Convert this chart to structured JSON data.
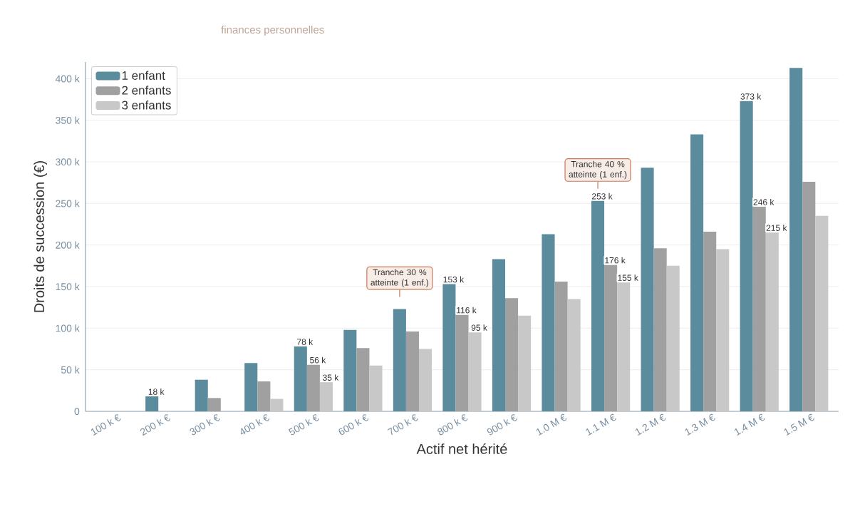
{
  "chart_data": {
    "type": "bar",
    "subtitle": "finances personnelles",
    "xlabel": "Actif net hérité",
    "ylabel": "Droits de succession (€)",
    "categories": [
      "100 k €",
      "200 k €",
      "300 k €",
      "400 k €",
      "500 k €",
      "600 k €",
      "700 k €",
      "800 k €",
      "900 k €",
      "1.0 M €",
      "1.1 M €",
      "1.2 M €",
      "1.3 M €",
      "1.4 M €",
      "1.5 M €"
    ],
    "series": [
      {
        "name": "1 enfant",
        "color": "#5b8c9e",
        "values": [
          0,
          18000,
          38000,
          58000,
          78000,
          98000,
          123000,
          153000,
          183000,
          213000,
          253000,
          293000,
          333000,
          373000,
          413000
        ],
        "value_labels": [
          null,
          "18 k",
          null,
          null,
          "78 k",
          null,
          null,
          "153 k",
          null,
          null,
          "253 k",
          null,
          null,
          "373 k",
          null
        ]
      },
      {
        "name": "2 enfants",
        "color": "#a0a0a0",
        "values": [
          0,
          0,
          16000,
          36000,
          56000,
          76000,
          96000,
          116000,
          136000,
          156000,
          176000,
          196000,
          216000,
          246000,
          276000
        ],
        "value_labels": [
          null,
          null,
          null,
          null,
          "56 k",
          null,
          null,
          "116 k",
          null,
          null,
          "176 k",
          null,
          null,
          "246 k",
          null
        ]
      },
      {
        "name": "3 enfants",
        "color": "#c8c8c8",
        "values": [
          0,
          0,
          0,
          15000,
          35000,
          55000,
          75000,
          95000,
          115000,
          135000,
          155000,
          175000,
          195000,
          215000,
          235000
        ],
        "value_labels": [
          null,
          null,
          null,
          null,
          "35 k",
          null,
          null,
          "95 k",
          null,
          null,
          "155 k",
          null,
          null,
          "215 k",
          null
        ]
      }
    ],
    "ylim": [
      0,
      420000
    ],
    "yticks": [
      0,
      {
        "value": 50000,
        "label": "50 k"
      },
      {
        "value": 100000,
        "label": "100 k"
      },
      {
        "value": 150000,
        "label": "150 k"
      },
      {
        "value": 200000,
        "label": "200 k"
      },
      {
        "value": 250000,
        "label": "250 k"
      },
      {
        "value": 300000,
        "label": "300 k"
      },
      {
        "value": 350000,
        "label": "350 k"
      },
      {
        "value": 400000,
        "label": "400 k"
      }
    ],
    "grid": "y",
    "legend": "top left",
    "annotations": [
      {
        "text": "Tranche 30 % atteinte (1 enf.)",
        "x": "700 k €",
        "y": 123000
      },
      {
        "text": "Tranche 40 % atteinte (1 enf.)",
        "x": "1.1 M €",
        "y": 253000
      }
    ]
  }
}
